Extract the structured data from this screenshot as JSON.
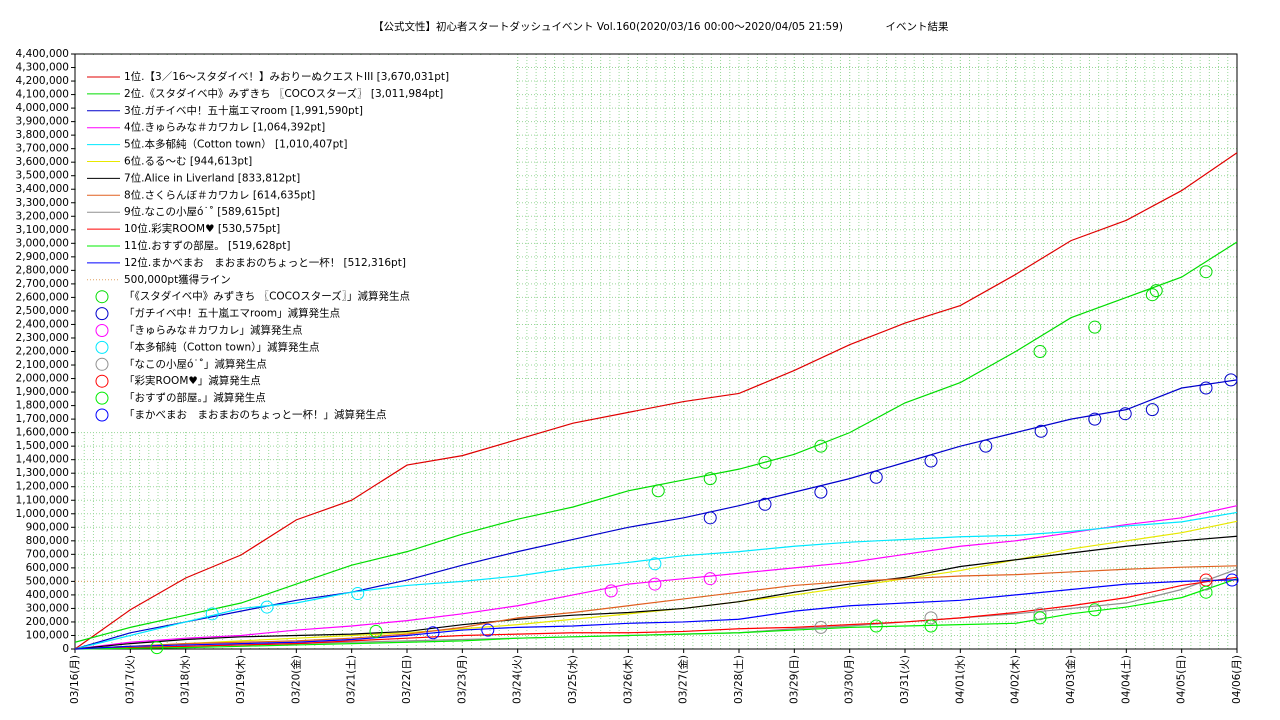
{
  "chart_data": {
    "type": "line",
    "title": "【公式文性】初心者スタートダッシュイベント Vol.160(2020/03/16 00:00〜2020/04/05 21:59)",
    "subtitle": "イベント結果",
    "x": [
      0,
      1,
      2,
      3,
      4,
      5,
      6,
      7,
      8,
      9,
      10,
      11,
      12,
      13,
      14,
      15,
      16,
      17,
      18,
      19,
      20,
      21
    ],
    "xlim": [
      0,
      21
    ],
    "xticks": [
      {
        "value": 0,
        "label": "03/16(月)"
      },
      {
        "value": 1,
        "label": "03/17(火)"
      },
      {
        "value": 2,
        "label": "03/18(水)"
      },
      {
        "value": 3,
        "label": "03/19(木)"
      },
      {
        "value": 4,
        "label": "03/20(金)"
      },
      {
        "value": 5,
        "label": "03/21(土)"
      },
      {
        "value": 6,
        "label": "03/22(日)"
      },
      {
        "value": 7,
        "label": "03/23(月)"
      },
      {
        "value": 8,
        "label": "03/24(火)"
      },
      {
        "value": 9,
        "label": "03/25(水)"
      },
      {
        "value": 10,
        "label": "03/26(木)"
      },
      {
        "value": 11,
        "label": "03/27(金)"
      },
      {
        "value": 12,
        "label": "03/28(土)"
      },
      {
        "value": 13,
        "label": "03/29(日)"
      },
      {
        "value": 14,
        "label": "03/30(月)"
      },
      {
        "value": 15,
        "label": "03/31(火)"
      },
      {
        "value": 16,
        "label": "04/01(水)"
      },
      {
        "value": 17,
        "label": "04/02(木)"
      },
      {
        "value": 18,
        "label": "04/03(金)"
      },
      {
        "value": 19,
        "label": "04/04(土)"
      },
      {
        "value": 20,
        "label": "04/05(日)"
      },
      {
        "value": 21,
        "label": "04/06(月)"
      }
    ],
    "ylim": [
      0,
      4400000
    ],
    "yticks": [
      0,
      {
        "value": 100000,
        "label": "100,000"
      },
      {
        "value": 200000,
        "label": "200,000"
      },
      {
        "value": 300000,
        "label": "300,000"
      },
      {
        "value": 400000,
        "label": "400,000"
      },
      {
        "value": 500000,
        "label": "500,000"
      },
      {
        "value": 600000,
        "label": "600,000"
      },
      {
        "value": 700000,
        "label": "700,000"
      },
      {
        "value": 800000,
        "label": "800,000"
      },
      {
        "value": 900000,
        "label": "900,000"
      },
      {
        "value": 1000000,
        "label": "1,000,000"
      },
      {
        "value": 1100000,
        "label": "1,100,000"
      },
      {
        "value": 1200000,
        "label": "1,200,000"
      },
      {
        "value": 1300000,
        "label": "1,300,000"
      },
      {
        "value": 1400000,
        "label": "1,400,000"
      },
      {
        "value": 1500000,
        "label": "1,500,000"
      },
      {
        "value": 1600000,
        "label": "1,600,000"
      },
      {
        "value": 1700000,
        "label": "1,700,000"
      },
      {
        "value": 1800000,
        "label": "1,800,000"
      },
      {
        "value": 1900000,
        "label": "1,900,000"
      },
      {
        "value": 2000000,
        "label": "2,000,000"
      },
      {
        "value": 2100000,
        "label": "2,100,000"
      },
      {
        "value": 2200000,
        "label": "2,200,000"
      },
      {
        "value": 2300000,
        "label": "2,300,000"
      },
      {
        "value": 2400000,
        "label": "2,400,000"
      },
      {
        "value": 2500000,
        "label": "2,500,000"
      },
      {
        "value": 2600000,
        "label": "2,600,000"
      },
      {
        "value": 2700000,
        "label": "2,700,000"
      },
      {
        "value": 2800000,
        "label": "2,800,000"
      },
      {
        "value": 2900000,
        "label": "2,900,000"
      },
      {
        "value": 3000000,
        "label": "3,000,000"
      },
      {
        "value": 3100000,
        "label": "3,100,000"
      },
      {
        "value": 3200000,
        "label": "3,200,000"
      },
      {
        "value": 3300000,
        "label": "3,300,000"
      },
      {
        "value": 3400000,
        "label": "3,400,000"
      },
      {
        "value": 3500000,
        "label": "3,500,000"
      },
      {
        "value": 3600000,
        "label": "3,600,000"
      },
      {
        "value": 3700000,
        "label": "3,700,000"
      },
      {
        "value": 3800000,
        "label": "3,800,000"
      },
      {
        "value": 3900000,
        "label": "3,900,000"
      },
      {
        "value": 4000000,
        "label": "4,000,000"
      },
      {
        "value": 4100000,
        "label": "4,100,000"
      },
      {
        "value": 4200000,
        "label": "4,200,000"
      },
      {
        "value": 4300000,
        "label": "4,300,000"
      },
      {
        "value": 4400000,
        "label": "4,400,000"
      }
    ],
    "grid": true,
    "series": [
      {
        "name": "1位.【3／16〜スタダイベ！】みおりーぬクエストIII [3,670,031pt]",
        "color": "#e00000",
        "values": [
          0,
          290000,
          525000,
          695000,
          955000,
          1100000,
          1360000,
          1430000,
          1550000,
          1670000,
          1750000,
          1830000,
          1890000,
          2060000,
          2250000,
          2410000,
          2540000,
          2770000,
          3020000,
          3170000,
          3390000,
          3670000
        ]
      },
      {
        "name": "2位.《スタダイベ中》みずきち 〖COCOスターズ〗 [3,011,984pt]",
        "color": "#00dd00",
        "values": [
          50000,
          160000,
          250000,
          340000,
          480000,
          620000,
          720000,
          850000,
          960000,
          1050000,
          1170000,
          1250000,
          1330000,
          1440000,
          1600000,
          1820000,
          1970000,
          2200000,
          2450000,
          2600000,
          2750000,
          3010000
        ]
      },
      {
        "name": "3位.ガチイベ中！五十嵐エマroom [1,991,590pt]",
        "color": "#0000cc",
        "values": [
          0,
          120000,
          200000,
          280000,
          360000,
          420000,
          510000,
          620000,
          720000,
          810000,
          900000,
          970000,
          1060000,
          1160000,
          1260000,
          1380000,
          1500000,
          1600000,
          1700000,
          1770000,
          1930000,
          1990000
        ]
      },
      {
        "name": "4位.きゅらみな＃カワカレ [1,064,392pt]",
        "color": "#ff00ff",
        "values": [
          0,
          50000,
          80000,
          100000,
          140000,
          170000,
          210000,
          260000,
          320000,
          400000,
          480000,
          520000,
          560000,
          600000,
          640000,
          700000,
          760000,
          800000,
          860000,
          920000,
          970000,
          1060000
        ]
      },
      {
        "name": "5位.本多郁純（Cotton town） [1,010,407pt]",
        "color": "#00e8ff",
        "values": [
          0,
          100000,
          200000,
          300000,
          340000,
          420000,
          470000,
          500000,
          540000,
          600000,
          640000,
          690000,
          720000,
          760000,
          790000,
          810000,
          830000,
          840000,
          870000,
          910000,
          940000,
          1010000
        ]
      },
      {
        "name": "6位.るる〜む [944,613pt]",
        "color": "#e8e800",
        "values": [
          0,
          20000,
          40000,
          60000,
          80000,
          100000,
          120000,
          150000,
          180000,
          220000,
          260000,
          300000,
          350000,
          400000,
          460000,
          520000,
          580000,
          660000,
          740000,
          800000,
          860000,
          944000
        ]
      },
      {
        "name": "7位.Alice in Liverland [833,812pt]",
        "color": "#000000",
        "values": [
          0,
          40000,
          70000,
          90000,
          100000,
          110000,
          130000,
          180000,
          220000,
          250000,
          270000,
          300000,
          350000,
          420000,
          480000,
          530000,
          610000,
          660000,
          710000,
          760000,
          800000,
          834000
        ]
      },
      {
        "name": "8位.さくらんぼ＃カワカレ [614,635pt]",
        "color": "#e06020",
        "values": [
          0,
          20000,
          40000,
          50000,
          60000,
          80000,
          110000,
          160000,
          230000,
          270000,
          320000,
          370000,
          420000,
          470000,
          500000,
          520000,
          540000,
          550000,
          570000,
          590000,
          605000,
          615000
        ]
      },
      {
        "name": "9位.なこの小屋ó˙˚ [589,615pt]",
        "color": "#909090",
        "values": [
          0,
          10000,
          20000,
          30000,
          40000,
          50000,
          60000,
          70000,
          80000,
          90000,
          100000,
          110000,
          120000,
          150000,
          170000,
          200000,
          230000,
          260000,
          300000,
          340000,
          440000,
          590000
        ]
      },
      {
        "name": "10位.彩実ROOM♥ [530,575pt]",
        "color": "#ff0000",
        "values": [
          0,
          10000,
          20000,
          30000,
          40000,
          60000,
          80000,
          100000,
          110000,
          120000,
          120000,
          130000,
          150000,
          160000,
          180000,
          200000,
          230000,
          270000,
          320000,
          380000,
          470000,
          531000
        ]
      },
      {
        "name": "11位.おすずの部屋。 [519,628pt]",
        "color": "#00ee00",
        "values": [
          0,
          5000,
          10000,
          20000,
          30000,
          40000,
          50000,
          60000,
          80000,
          90000,
          100000,
          110000,
          120000,
          140000,
          160000,
          170000,
          180000,
          190000,
          260000,
          310000,
          380000,
          520000
        ]
      },
      {
        "name": "12位.まかべまお　まおまおのちょっと一杯！ [512,316pt]",
        "color": "#0000ff",
        "values": [
          0,
          20000,
          30000,
          40000,
          50000,
          70000,
          100000,
          140000,
          160000,
          170000,
          190000,
          200000,
          220000,
          280000,
          320000,
          340000,
          360000,
          400000,
          440000,
          480000,
          500000,
          512000
        ]
      }
    ],
    "hline": {
      "name": "500,000pt獲得ライン",
      "value": 500000,
      "color": "#e0a060"
    },
    "markers": [
      {
        "name": "「《スタダイベ中》みずきち 〖COCOスターズ〗」減算発生点",
        "color": "#00dd00",
        "x": [
          10.54,
          11.48,
          12.47,
          13.48,
          17.44,
          18.43,
          19.47,
          19.54,
          20.44
        ],
        "y": [
          1170000,
          1260000,
          1380000,
          1500000,
          2200000,
          2380000,
          2620000,
          2650000,
          2790000
        ]
      },
      {
        "name": "「ガチイベ中！五十嵐エマroom」減算発生点",
        "color": "#0000cc",
        "x": [
          11.48,
          12.47,
          13.48,
          14.48,
          15.47,
          16.46,
          17.46,
          18.43,
          18.98,
          19.47,
          20.44,
          20.89
        ],
        "y": [
          970000,
          1070000,
          1160000,
          1270000,
          1390000,
          1500000,
          1610000,
          1700000,
          1740000,
          1770000,
          1930000,
          1990000
        ]
      },
      {
        "name": "「きゅらみな＃カワカレ」減算発生点",
        "color": "#ff00ff",
        "x": [
          9.69,
          10.48,
          11.48
        ],
        "y": [
          430000,
          480000,
          520000
        ]
      },
      {
        "name": "「本多郁純（Cotton town）」減算発生点",
        "color": "#00e8ff",
        "x": [
          2.48,
          3.47,
          5.11,
          10.48
        ],
        "y": [
          260000,
          310000,
          410000,
          630000
        ]
      },
      {
        "name": "「なこの小屋ó˙˚」減算発生点",
        "color": "#909090",
        "x": [
          13.48,
          15.47,
          17.44,
          20.44
        ],
        "y": [
          160000,
          230000,
          260000,
          480000
        ]
      },
      {
        "name": "「彩実ROOM♥」減算発生点",
        "color": "#ff0000",
        "x": [
          20.44
        ],
        "y": [
          510000
        ]
      },
      {
        "name": "「おすずの部屋。」減算発生点",
        "color": "#00ee00",
        "x": [
          1.48,
          5.44,
          14.48,
          15.47,
          17.44,
          18.43,
          20.44
        ],
        "y": [
          10000,
          130000,
          170000,
          170000,
          230000,
          290000,
          420000
        ]
      },
      {
        "name": "「まかべまお　まおまおのちょっと一杯！」減算発生点",
        "color": "#0000ff",
        "x": [
          6.47,
          7.46,
          20.91
        ],
        "y": [
          120000,
          140000,
          510000
        ]
      }
    ]
  }
}
